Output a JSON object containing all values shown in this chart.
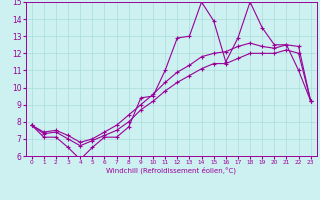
{
  "xlabel": "Windchill (Refroidissement éolien,°C)",
  "x": [
    0,
    1,
    2,
    3,
    4,
    5,
    6,
    7,
    8,
    9,
    10,
    11,
    12,
    13,
    14,
    15,
    16,
    17,
    18,
    19,
    20,
    21,
    22,
    23
  ],
  "line1": [
    7.8,
    7.1,
    7.1,
    6.5,
    5.8,
    6.5,
    7.1,
    7.1,
    7.7,
    9.4,
    9.5,
    11.0,
    12.9,
    13.0,
    15.0,
    13.9,
    11.5,
    12.9,
    15.0,
    13.5,
    12.5,
    12.5,
    11.0,
    9.2
  ],
  "line2": [
    7.8,
    7.4,
    7.5,
    7.2,
    6.8,
    7.0,
    7.4,
    7.8,
    8.4,
    9.0,
    9.6,
    10.3,
    10.9,
    11.3,
    11.8,
    12.0,
    12.1,
    12.4,
    12.6,
    12.4,
    12.3,
    12.5,
    12.4,
    9.2
  ],
  "line3": [
    7.8,
    7.3,
    7.4,
    7.0,
    6.6,
    6.9,
    7.2,
    7.5,
    8.0,
    8.7,
    9.2,
    9.8,
    10.3,
    10.7,
    11.1,
    11.4,
    11.4,
    11.7,
    12.0,
    12.0,
    12.0,
    12.2,
    12.0,
    9.2
  ],
  "line_color": "#990099",
  "bg_color": "#cdf0f0",
  "grid_color": "#aadddd",
  "ylim": [
    6,
    15
  ],
  "yticks": [
    6,
    7,
    8,
    9,
    10,
    11,
    12,
    13,
    14,
    15
  ],
  "xticks": [
    0,
    1,
    2,
    3,
    4,
    5,
    6,
    7,
    8,
    9,
    10,
    11,
    12,
    13,
    14,
    15,
    16,
    17,
    18,
    19,
    20,
    21,
    22,
    23
  ]
}
